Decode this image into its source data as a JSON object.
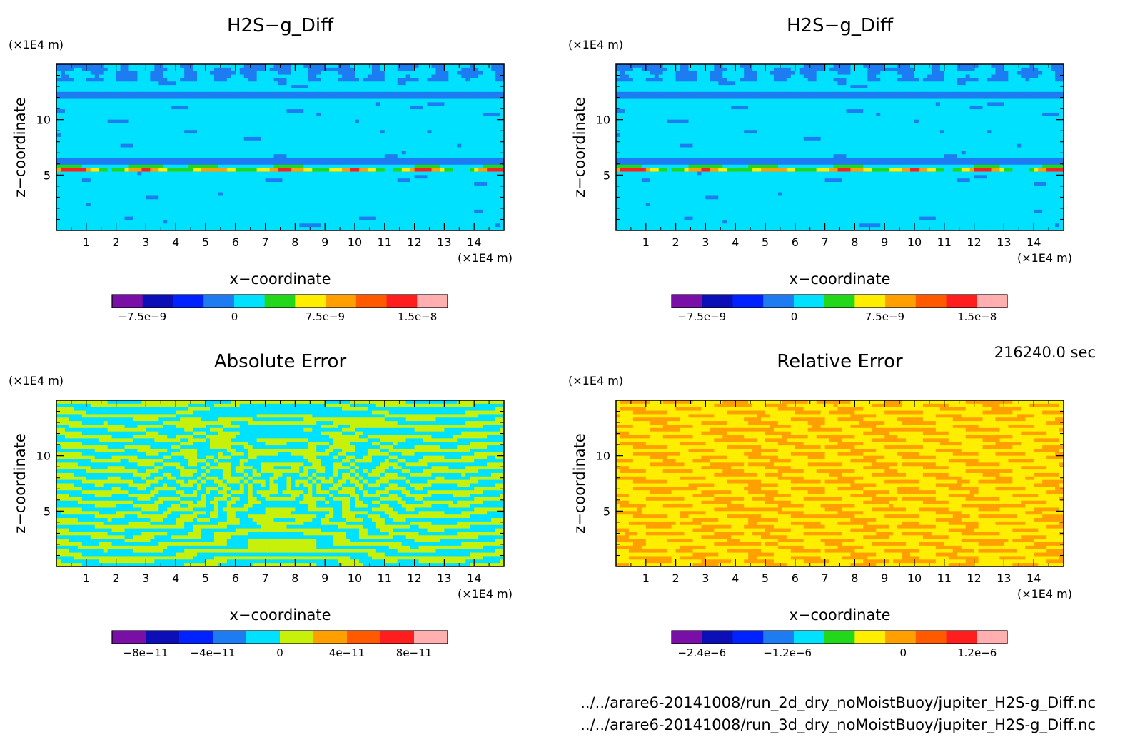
{
  "figure": {
    "time_label": "216240.0 sec",
    "files": [
      "../../arare6-20141008/run_2d_dry_noMoistBuoy/jupiter_H2S-g_Diff.nc",
      "../../arare6-20141008/run_3d_dry_noMoistBuoy/jupiter_H2S-g_Diff.nc"
    ]
  },
  "chart_data": [
    {
      "type": "heatmap",
      "id": "p1",
      "title": "H2S−g_Diff",
      "xlabel": "x−coordinate",
      "ylabel": "z−coordinate",
      "x_unit": "(×1E4 m)",
      "y_unit": "(×1E4 m)",
      "xlim": [
        0,
        15
      ],
      "ylim": [
        0,
        15
      ],
      "xticks": [
        "1",
        "2",
        "3",
        "4",
        "5",
        "6",
        "7",
        "8",
        "9",
        "10",
        "11",
        "12",
        "13",
        "14"
      ],
      "yticks": [
        "5",
        "10"
      ],
      "field": "h2s",
      "colorbar": {
        "colors": [
          "#7a0fa8",
          "#0b0fb5",
          "#0022ff",
          "#1e7cf2",
          "#00e1ff",
          "#23d81b",
          "#ffee00",
          "#ff9f00",
          "#ff5a00",
          "#ff1e1e",
          "#ffafaf"
        ],
        "tick_labels": [
          "−7.5e−9",
          "0",
          "7.5e−9",
          "1.5e−8"
        ],
        "tick_positions": [
          0.09,
          0.365,
          0.635,
          0.91
        ]
      }
    },
    {
      "type": "heatmap",
      "id": "p2",
      "title": "H2S−g_Diff",
      "xlabel": "x−coordinate",
      "ylabel": "z−coordinate",
      "x_unit": "(×1E4 m)",
      "y_unit": "(×1E4 m)",
      "xlim": [
        0,
        15
      ],
      "ylim": [
        0,
        15
      ],
      "xticks": [
        "1",
        "2",
        "3",
        "4",
        "5",
        "6",
        "7",
        "8",
        "9",
        "10",
        "11",
        "12",
        "13",
        "14"
      ],
      "yticks": [
        "5",
        "10"
      ],
      "field": "h2s",
      "colorbar": {
        "colors": [
          "#7a0fa8",
          "#0b0fb5",
          "#0022ff",
          "#1e7cf2",
          "#00e1ff",
          "#23d81b",
          "#ffee00",
          "#ff9f00",
          "#ff5a00",
          "#ff1e1e",
          "#ffafaf"
        ],
        "tick_labels": [
          "−7.5e−9",
          "0",
          "7.5e−9",
          "1.5e−8"
        ],
        "tick_positions": [
          0.09,
          0.365,
          0.635,
          0.91
        ]
      }
    },
    {
      "type": "heatmap",
      "id": "p3",
      "title": "Absolute Error",
      "xlabel": "x−coordinate",
      "ylabel": "z−coordinate",
      "x_unit": "(×1E4 m)",
      "y_unit": "(×1E4 m)",
      "xlim": [
        0,
        15
      ],
      "ylim": [
        0,
        15
      ],
      "xticks": [
        "1",
        "2",
        "3",
        "4",
        "5",
        "6",
        "7",
        "8",
        "9",
        "10",
        "11",
        "12",
        "13",
        "14"
      ],
      "yticks": [
        "5",
        "10"
      ],
      "field": "abs",
      "colorbar": {
        "colors": [
          "#7a0fa8",
          "#0b0fb5",
          "#0022ff",
          "#1e7cf2",
          "#00e1ff",
          "#c7f00a",
          "#ff9f00",
          "#ff5a00",
          "#ff1e1e",
          "#ffafaf"
        ],
        "tick_labels": [
          "−8e−11",
          "−4e−11",
          "0",
          "4e−11",
          "8e−11"
        ],
        "tick_positions": [
          0.1,
          0.3,
          0.5,
          0.7,
          0.9
        ]
      }
    },
    {
      "type": "heatmap",
      "id": "p4",
      "title": "Relative Error",
      "xlabel": "x−coordinate",
      "ylabel": "z−coordinate",
      "x_unit": "(×1E4 m)",
      "y_unit": "(×1E4 m)",
      "xlim": [
        0,
        15
      ],
      "ylim": [
        0,
        15
      ],
      "xticks": [
        "1",
        "2",
        "3",
        "4",
        "5",
        "6",
        "7",
        "8",
        "9",
        "10",
        "11",
        "12",
        "13",
        "14"
      ],
      "yticks": [
        "5",
        "10"
      ],
      "field": "rel",
      "colorbar": {
        "colors": [
          "#7a0fa8",
          "#0b0fb5",
          "#0022ff",
          "#1e7cf2",
          "#00e1ff",
          "#23d81b",
          "#ffee00",
          "#ff9f00",
          "#ff5a00",
          "#ff1e1e",
          "#ffafaf"
        ],
        "tick_labels": [
          "−2.4e−6",
          "−1.2e−6",
          "0",
          "1.2e−6"
        ],
        "tick_positions": [
          0.09,
          0.345,
          0.69,
          0.91
        ]
      }
    }
  ]
}
